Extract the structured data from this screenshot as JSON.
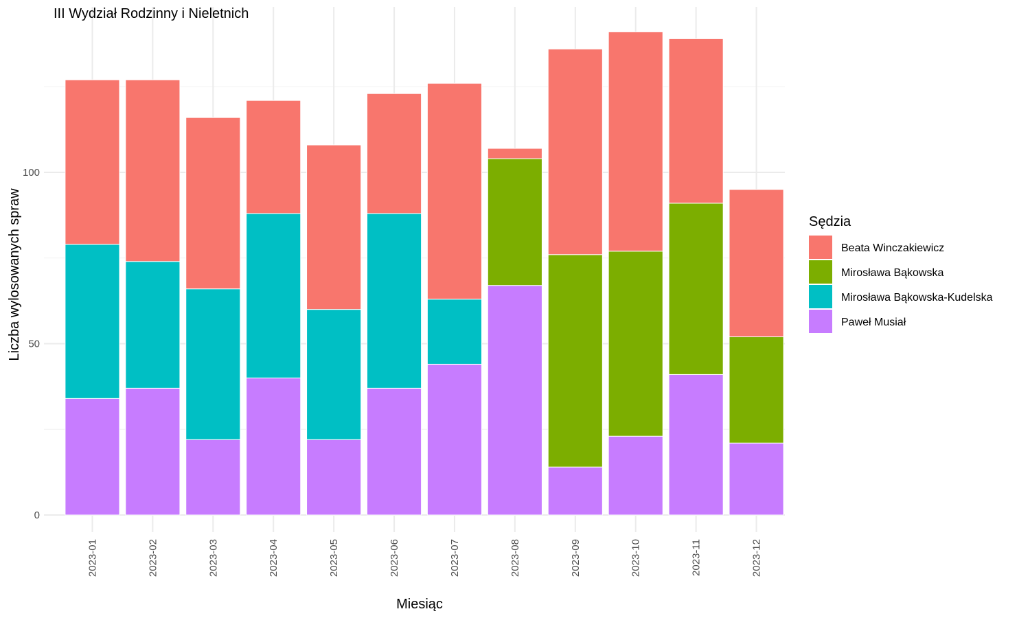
{
  "chart_data": {
    "type": "bar",
    "stacked": true,
    "title": "III Wydział Rodzinny i Nieletnich",
    "xlabel": "Miesiąc",
    "ylabel": "Liczba wylosowanych spraw",
    "ylim": [
      0,
      142
    ],
    "yticks": [
      0,
      50,
      100
    ],
    "grid": true,
    "legend_position": "right",
    "legend_title": "Sędzia",
    "categories": [
      "2023-01",
      "2023-02",
      "2023-03",
      "2023-04",
      "2023-05",
      "2023-06",
      "2023-07",
      "2023-08",
      "2023-09",
      "2023-10",
      "2023-11",
      "2023-12"
    ],
    "series": [
      {
        "name": "Beata Winczakiewicz",
        "color": "#F8766D",
        "values": [
          48,
          53,
          50,
          33,
          48,
          35,
          63,
          3,
          60,
          64,
          48,
          43
        ]
      },
      {
        "name": "Mirosława Bąkowska",
        "color": "#7CAE00",
        "values": [
          0,
          0,
          0,
          0,
          0,
          0,
          0,
          37,
          62,
          54,
          50,
          31
        ]
      },
      {
        "name": "Mirosława Bąkowska-Kudelska",
        "color": "#00BFC4",
        "values": [
          45,
          37,
          44,
          48,
          38,
          51,
          19,
          0,
          0,
          0,
          0,
          0
        ]
      },
      {
        "name": "Paweł Musiał",
        "color": "#C77CFF",
        "values": [
          34,
          37,
          22,
          40,
          22,
          37,
          44,
          67,
          14,
          23,
          41,
          21
        ]
      }
    ]
  }
}
